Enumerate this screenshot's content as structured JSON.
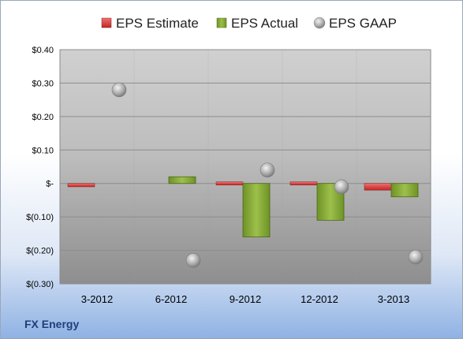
{
  "chart_data": {
    "type": "bar",
    "categories": [
      "3-2012",
      "6-2012",
      "9-2012",
      "12-2012",
      "3-2013"
    ],
    "series": [
      {
        "name": "EPS Estimate",
        "kind": "bar-thin",
        "color": "#d9383a",
        "values": [
          -0.01,
          null,
          0.005,
          0.005,
          -0.02
        ]
      },
      {
        "name": "EPS Actual",
        "kind": "bar",
        "color": "#8db23f",
        "values": [
          null,
          0.02,
          -0.16,
          -0.11,
          -0.04
        ]
      },
      {
        "name": "EPS GAAP",
        "kind": "marker",
        "color": "#b5b5b5",
        "values": [
          0.28,
          -0.23,
          0.04,
          -0.01,
          -0.22
        ]
      }
    ],
    "ylim": [
      -0.3,
      0.4
    ],
    "yticks": [
      0.4,
      0.3,
      0.2,
      0.1,
      0,
      -0.1,
      -0.2,
      -0.3
    ],
    "ytick_labels": [
      "$0.40",
      "$0.30",
      "$0.20",
      "$0.10",
      "$-",
      "$(0.10)",
      "$(0.20)",
      "$(0.30)"
    ],
    "grid": true,
    "legend_position": "top"
  },
  "footer": {
    "company": "FX Energy"
  }
}
